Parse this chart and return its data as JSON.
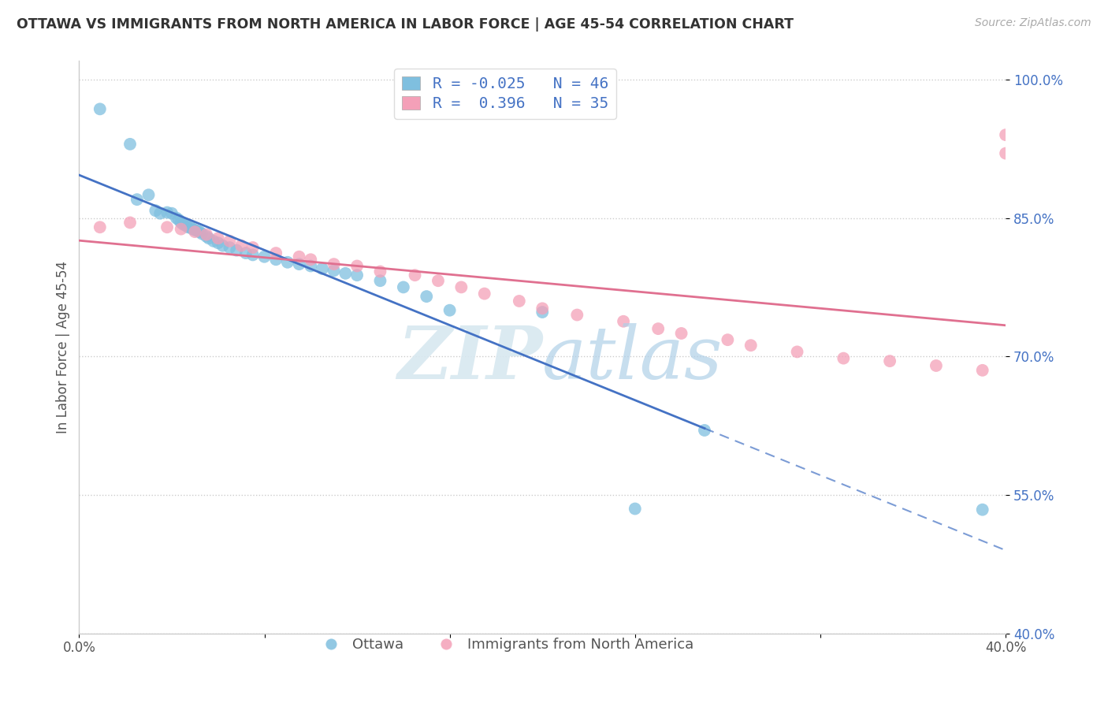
{
  "title": "OTTAWA VS IMMIGRANTS FROM NORTH AMERICA IN LABOR FORCE | AGE 45-54 CORRELATION CHART",
  "source": "Source: ZipAtlas.com",
  "ylabel": "In Labor Force | Age 45-54",
  "xlim": [
    0.0,
    0.4
  ],
  "ylim": [
    0.4,
    1.02
  ],
  "yticks": [
    0.4,
    0.55,
    0.7,
    0.85,
    1.0
  ],
  "ytick_labels": [
    "40.0%",
    "55.0%",
    "70.0%",
    "85.0%",
    "100.0%"
  ],
  "xticks": [
    0.0,
    0.08,
    0.16,
    0.24,
    0.32,
    0.4
  ],
  "xtick_labels": [
    "0.0%",
    "",
    "",
    "",
    "",
    "40.0%"
  ],
  "ottawa_R": -0.025,
  "ottawa_N": 46,
  "immigrants_R": 0.396,
  "immigrants_N": 35,
  "ottawa_color": "#7fbfdf",
  "immigrants_color": "#f4a0b8",
  "ottawa_line_color": "#4472c4",
  "immigrants_line_color": "#e07090",
  "background_color": "#ffffff",
  "watermark_zip": "ZIP",
  "watermark_atlas": "atlas",
  "ottawa_line_solid_end": 0.27,
  "ottawa_x": [
    0.009,
    0.022,
    0.025,
    0.03,
    0.033,
    0.035,
    0.038,
    0.04,
    0.042,
    0.043,
    0.044,
    0.045,
    0.046,
    0.047,
    0.048,
    0.049,
    0.05,
    0.051,
    0.052,
    0.053,
    0.055,
    0.056,
    0.058,
    0.06,
    0.062,
    0.065,
    0.068,
    0.072,
    0.075,
    0.08,
    0.085,
    0.09,
    0.095,
    0.1,
    0.105,
    0.11,
    0.115,
    0.12,
    0.13,
    0.14,
    0.15,
    0.16,
    0.2,
    0.24,
    0.27,
    0.39
  ],
  "ottawa_y": [
    0.968,
    0.93,
    0.87,
    0.875,
    0.858,
    0.855,
    0.856,
    0.855,
    0.85,
    0.848,
    0.845,
    0.843,
    0.842,
    0.84,
    0.84,
    0.838,
    0.837,
    0.836,
    0.835,
    0.833,
    0.83,
    0.828,
    0.825,
    0.823,
    0.82,
    0.818,
    0.815,
    0.812,
    0.81,
    0.808,
    0.805,
    0.802,
    0.8,
    0.798,
    0.795,
    0.793,
    0.79,
    0.788,
    0.782,
    0.775,
    0.765,
    0.75,
    0.748,
    0.535,
    0.62,
    0.534
  ],
  "immigrants_x": [
    0.009,
    0.022,
    0.038,
    0.044,
    0.05,
    0.055,
    0.06,
    0.065,
    0.07,
    0.075,
    0.085,
    0.095,
    0.1,
    0.11,
    0.12,
    0.13,
    0.145,
    0.155,
    0.165,
    0.175,
    0.19,
    0.2,
    0.215,
    0.235,
    0.25,
    0.26,
    0.28,
    0.29,
    0.31,
    0.33,
    0.35,
    0.37,
    0.39,
    0.4,
    0.4
  ],
  "immigrants_y": [
    0.84,
    0.845,
    0.84,
    0.838,
    0.835,
    0.832,
    0.828,
    0.825,
    0.82,
    0.818,
    0.812,
    0.808,
    0.805,
    0.8,
    0.798,
    0.792,
    0.788,
    0.782,
    0.775,
    0.768,
    0.76,
    0.752,
    0.745,
    0.738,
    0.73,
    0.725,
    0.718,
    0.712,
    0.705,
    0.698,
    0.695,
    0.69,
    0.685,
    0.92,
    0.94
  ]
}
